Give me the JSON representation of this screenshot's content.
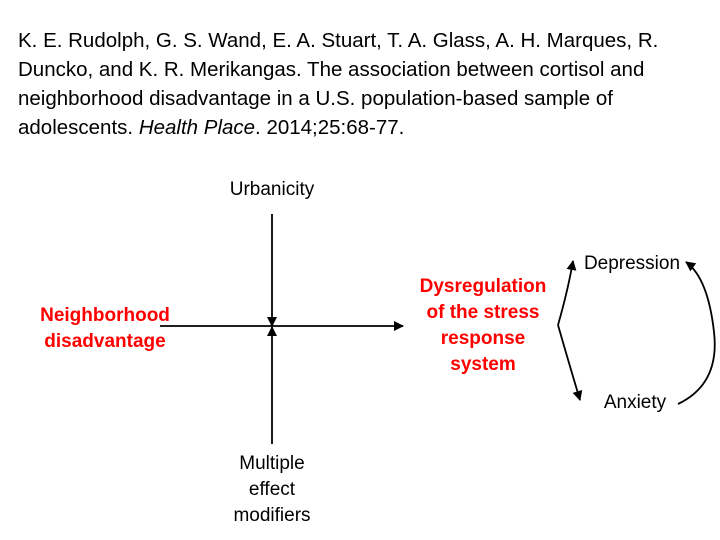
{
  "citation": {
    "authors_pre": "K. E. Rudolph, G. S. Wand, E. A. Stuart, T. A. Glass, A. H. Marques, R. Duncko, and K. R. Merikangas. The association between cortisol and neighborhood disadvantage in a U.S. population-based sample of adolescents. ",
    "journal": "Health Place",
    "details": ". 2014;25:68-77."
  },
  "diagram": {
    "top_label": "Urbanicity",
    "left_label": {
      "line1": "Neighborhood",
      "line2": "disadvantage"
    },
    "bottom_label": {
      "line1": "Multiple",
      "line2": "effect",
      "line3": "modifiers"
    },
    "center_label": {
      "line1": "Dysregulation",
      "line2": "of the stress",
      "line3": "response",
      "line4": "system"
    },
    "outcome_top": "Depression",
    "outcome_bottom": "Anxiety"
  },
  "colors": {
    "highlight": "#ff0000",
    "text": "#000000"
  }
}
